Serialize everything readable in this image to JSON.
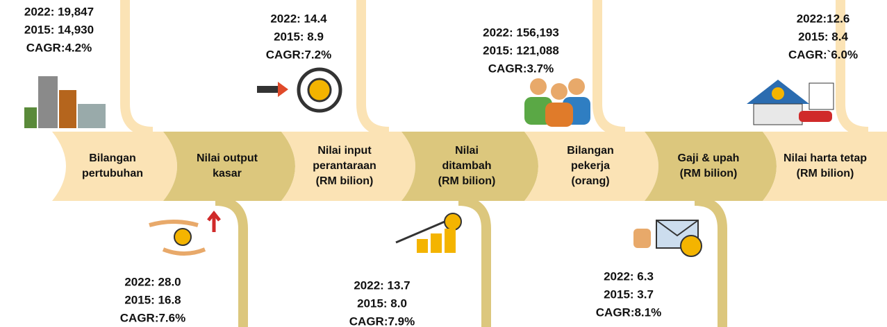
{
  "items": [
    {
      "label": [
        "Bilangan",
        "pertubuhan"
      ],
      "stats": [
        "2022: 19,847",
        "2015: 14,930",
        "CAGR:4.2%"
      ]
    },
    {
      "label": [
        "Nilai output",
        "kasar"
      ],
      "stats": [
        "2022: 28.0",
        "2015: 16.8",
        "CAGR:7.6%"
      ]
    },
    {
      "label": [
        "Nilai input",
        "perantaraan",
        "(RM bilion)"
      ],
      "stats": [
        "2022: 14.4",
        "2015: 8.9",
        "CAGR:7.2%"
      ]
    },
    {
      "label": [
        "Nilai",
        "ditambah",
        "(RM bilion)"
      ],
      "stats": [
        "2022: 13.7",
        "2015: 8.0",
        "CAGR:7.9%"
      ]
    },
    {
      "label": [
        "Bilangan",
        "pekerja",
        "(orang)"
      ],
      "stats": [
        "2022: 156,193",
        "2015: 121,088",
        "CAGR:3.7%"
      ]
    },
    {
      "label": [
        "Gaji & upah",
        "(RM bilion)"
      ],
      "stats": [
        "2022: 6.3",
        "2015: 3.7",
        "CAGR:8.1%"
      ]
    },
    {
      "label": [
        "Nilai harta tetap",
        "(RM bilion)"
      ],
      "stats": [
        "2022:12.6",
        "2015: 8.4",
        "CAGR:`6.0%"
      ]
    }
  ]
}
